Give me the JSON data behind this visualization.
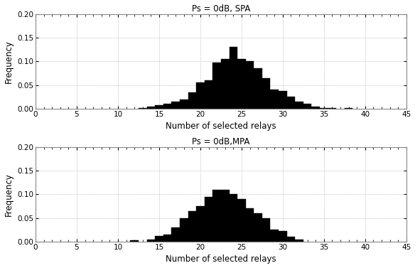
{
  "title1": "Ps = 0dB, SPA",
  "title2": "Ps = 0dB,MPA",
  "xlabel": "Number of selected relays",
  "ylabel": "Frequency",
  "xlim": [
    0,
    45
  ],
  "ylim": [
    0,
    0.2
  ],
  "xticks": [
    0,
    5,
    10,
    15,
    20,
    25,
    30,
    35,
    40,
    45
  ],
  "yticks": [
    0,
    0.05,
    0.1,
    0.15,
    0.2
  ],
  "bar_width": 1.0,
  "spa_bins": [
    13,
    14,
    15,
    16,
    17,
    18,
    19,
    20,
    21,
    22,
    23,
    24,
    25,
    26,
    27,
    28,
    29,
    30,
    31,
    32,
    33,
    34,
    35,
    36,
    38
  ],
  "spa_values": [
    0.002,
    0.004,
    0.008,
    0.01,
    0.015,
    0.02,
    0.035,
    0.055,
    0.06,
    0.098,
    0.105,
    0.13,
    0.105,
    0.1,
    0.085,
    0.065,
    0.04,
    0.038,
    0.025,
    0.015,
    0.01,
    0.005,
    0.002,
    0.001,
    0.001
  ],
  "mpa_bins": [
    12,
    14,
    15,
    16,
    17,
    18,
    19,
    20,
    21,
    22,
    23,
    24,
    25,
    26,
    27,
    28,
    29,
    30,
    31,
    32
  ],
  "mpa_values": [
    0.003,
    0.005,
    0.012,
    0.015,
    0.03,
    0.05,
    0.065,
    0.075,
    0.095,
    0.11,
    0.11,
    0.1,
    0.09,
    0.07,
    0.06,
    0.05,
    0.025,
    0.022,
    0.01,
    0.005
  ],
  "bar_color": "#000000",
  "bg_color": "#ffffff",
  "grid_color": "#aaaaaa"
}
